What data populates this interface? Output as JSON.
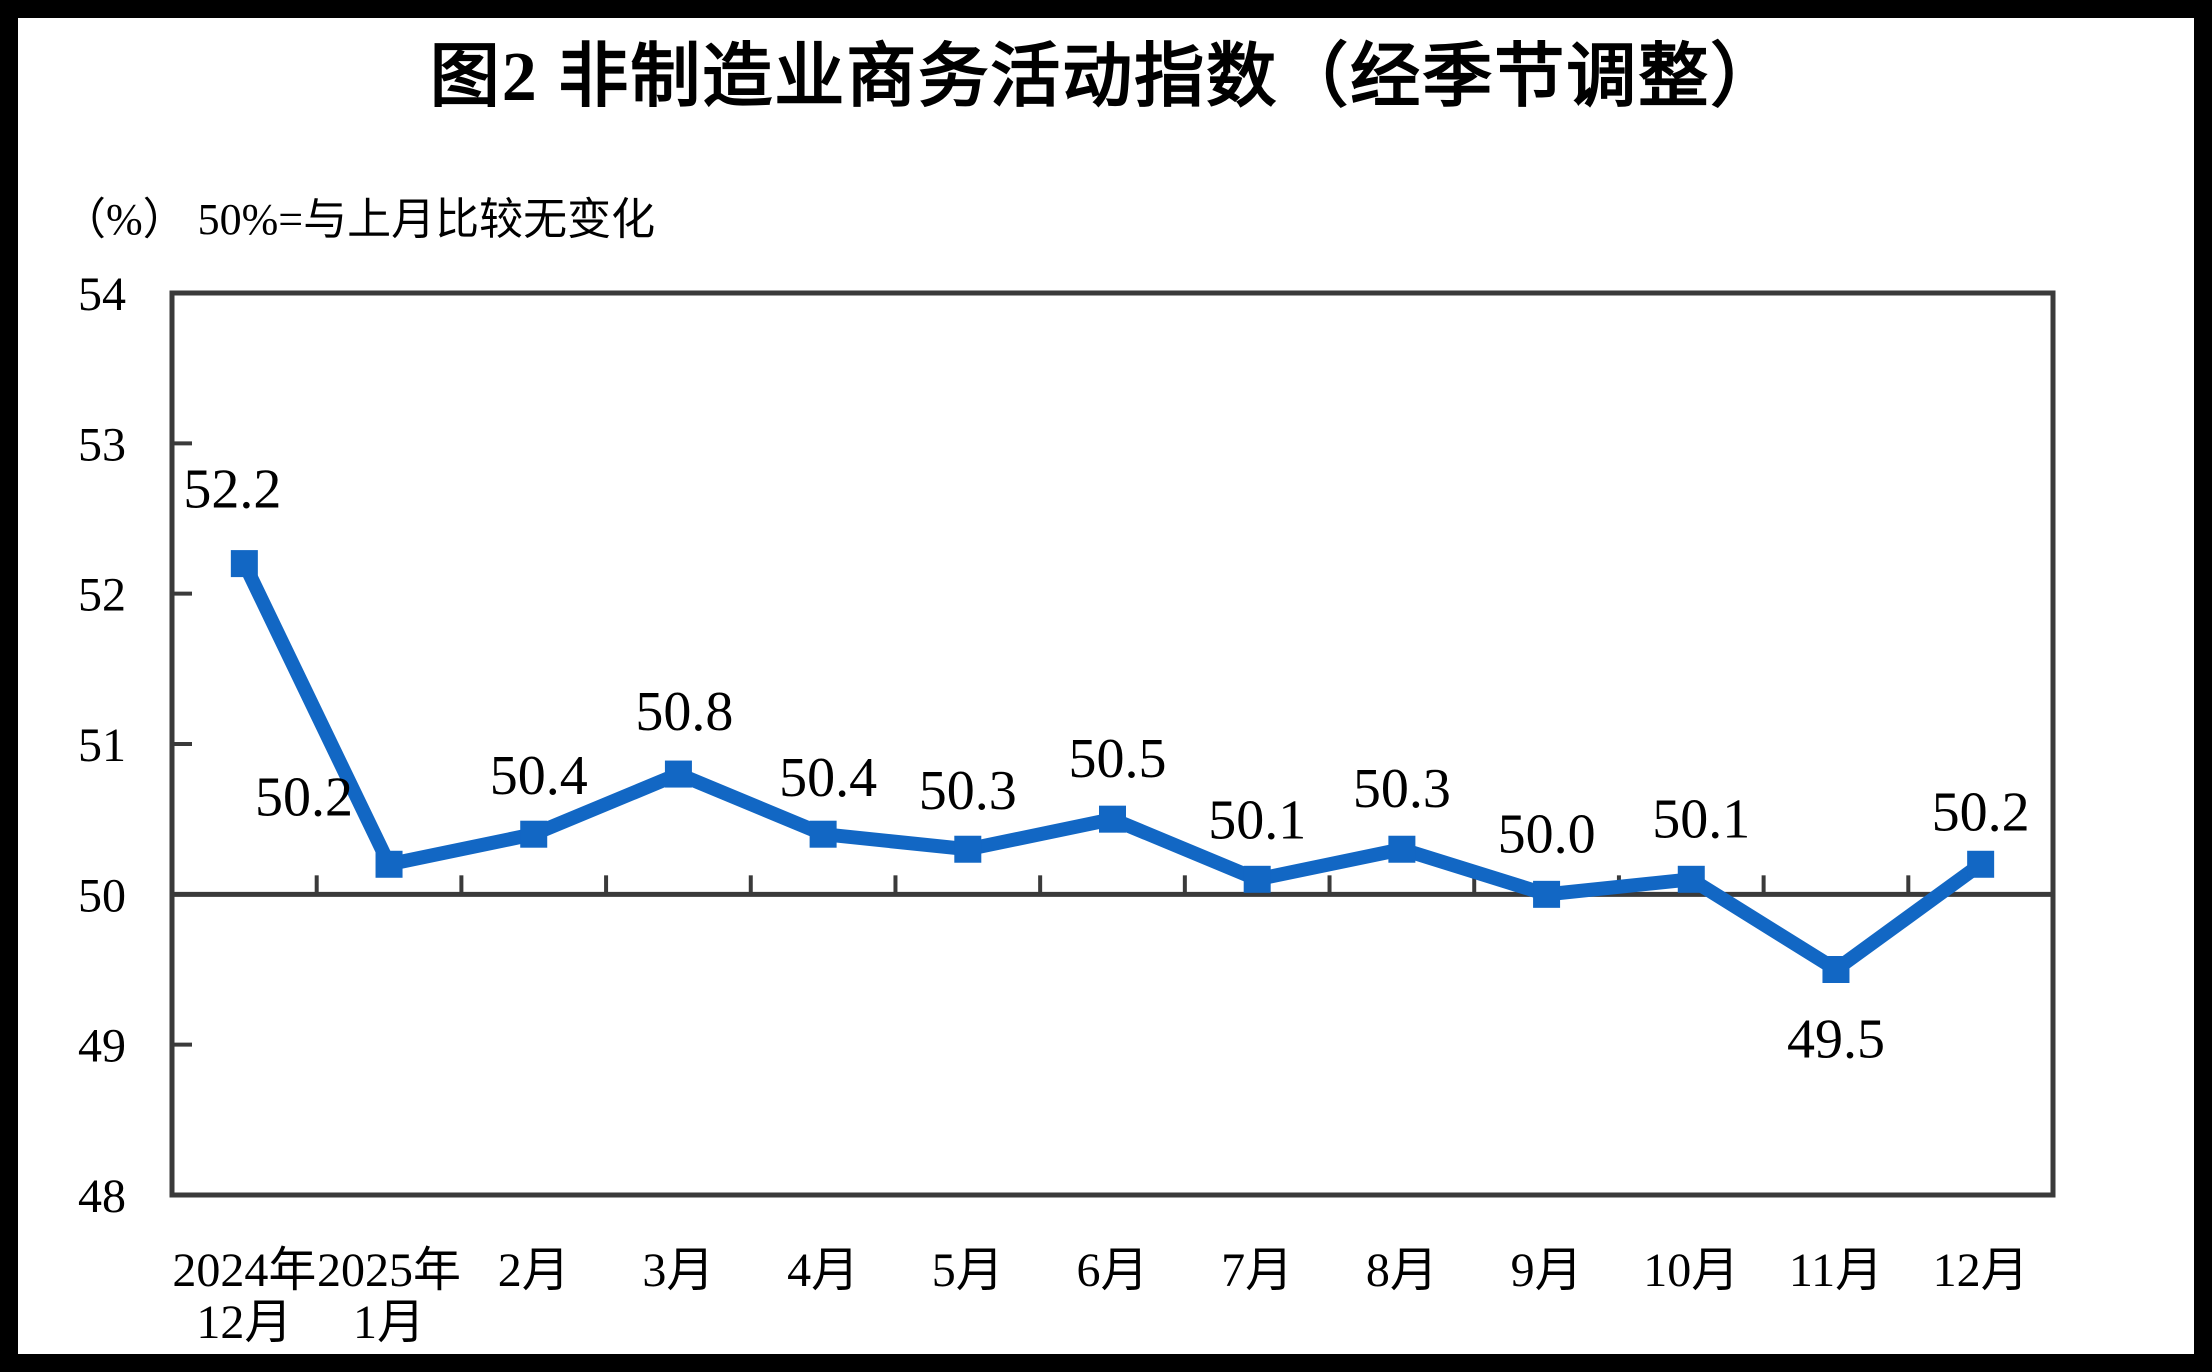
{
  "title": "图2 非制造业商务活动指数（经季节调整）",
  "subtitle": "（%） 50%=与上月比较无变化",
  "chart_data": {
    "type": "line",
    "title": "图2 非制造业商务活动指数（经季节调整）",
    "unit_note": "（%） 50%=与上月比较无变化",
    "categories": [
      "2024年\n12月",
      "2025年\n1月",
      "2月",
      "3月",
      "4月",
      "5月",
      "6月",
      "7月",
      "8月",
      "9月",
      "10月",
      "11月",
      "12月"
    ],
    "series": [
      {
        "values": [
          52.2,
          50.2,
          50.4,
          50.8,
          50.4,
          50.3,
          50.5,
          50.1,
          50.3,
          50.0,
          50.1,
          49.5,
          50.2
        ],
        "labels": [
          "52.2",
          "50.2",
          "50.4",
          "50.8",
          "50.4",
          "50.3",
          "50.5",
          "50.1",
          "50.3",
          "50.0",
          "50.1",
          "49.5",
          "50.2"
        ],
        "color": "#1267C4",
        "marker": "square"
      }
    ],
    "ylim": [
      48,
      54
    ],
    "y_ticks": [
      "48",
      "49",
      "50",
      "51",
      "52",
      "53",
      "54"
    ],
    "reference_line": 50,
    "grid": false,
    "legend": "none",
    "axis_color": "#3A3A3A"
  }
}
